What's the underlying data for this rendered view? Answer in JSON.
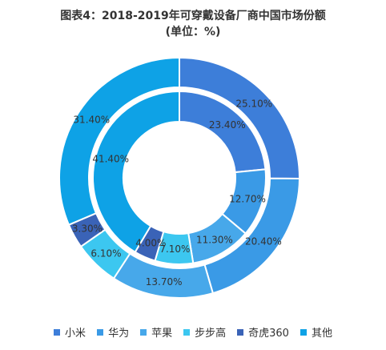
{
  "chart_data": {
    "type": "pie",
    "title": "图表4：2018-2019年可穿戴设备厂商中国市场份额",
    "subtitle": "(单位：%)",
    "categories": [
      "小米",
      "华为",
      "苹果",
      "步步高",
      "奇虎360",
      "其他"
    ],
    "colors": [
      "#3d7ed9",
      "#3a9ae6",
      "#47a8ea",
      "#3cc7f0",
      "#3a63b7",
      "#0ea2e6"
    ],
    "series": [
      {
        "ring": "inner",
        "values": [
          23.4,
          12.7,
          11.3,
          7.1,
          4.0,
          41.4
        ],
        "labels": [
          "23.40%",
          "12.70%",
          "11.30%",
          "7.10%",
          "4.00%",
          "41.40%"
        ]
      },
      {
        "ring": "outer",
        "values": [
          25.1,
          20.4,
          13.7,
          6.1,
          3.3,
          31.4
        ],
        "labels": [
          "25.10%",
          "20.40%",
          "13.70%",
          "6.10%",
          "3.30%",
          "31.40%"
        ]
      }
    ],
    "legend_position": "bottom"
  }
}
